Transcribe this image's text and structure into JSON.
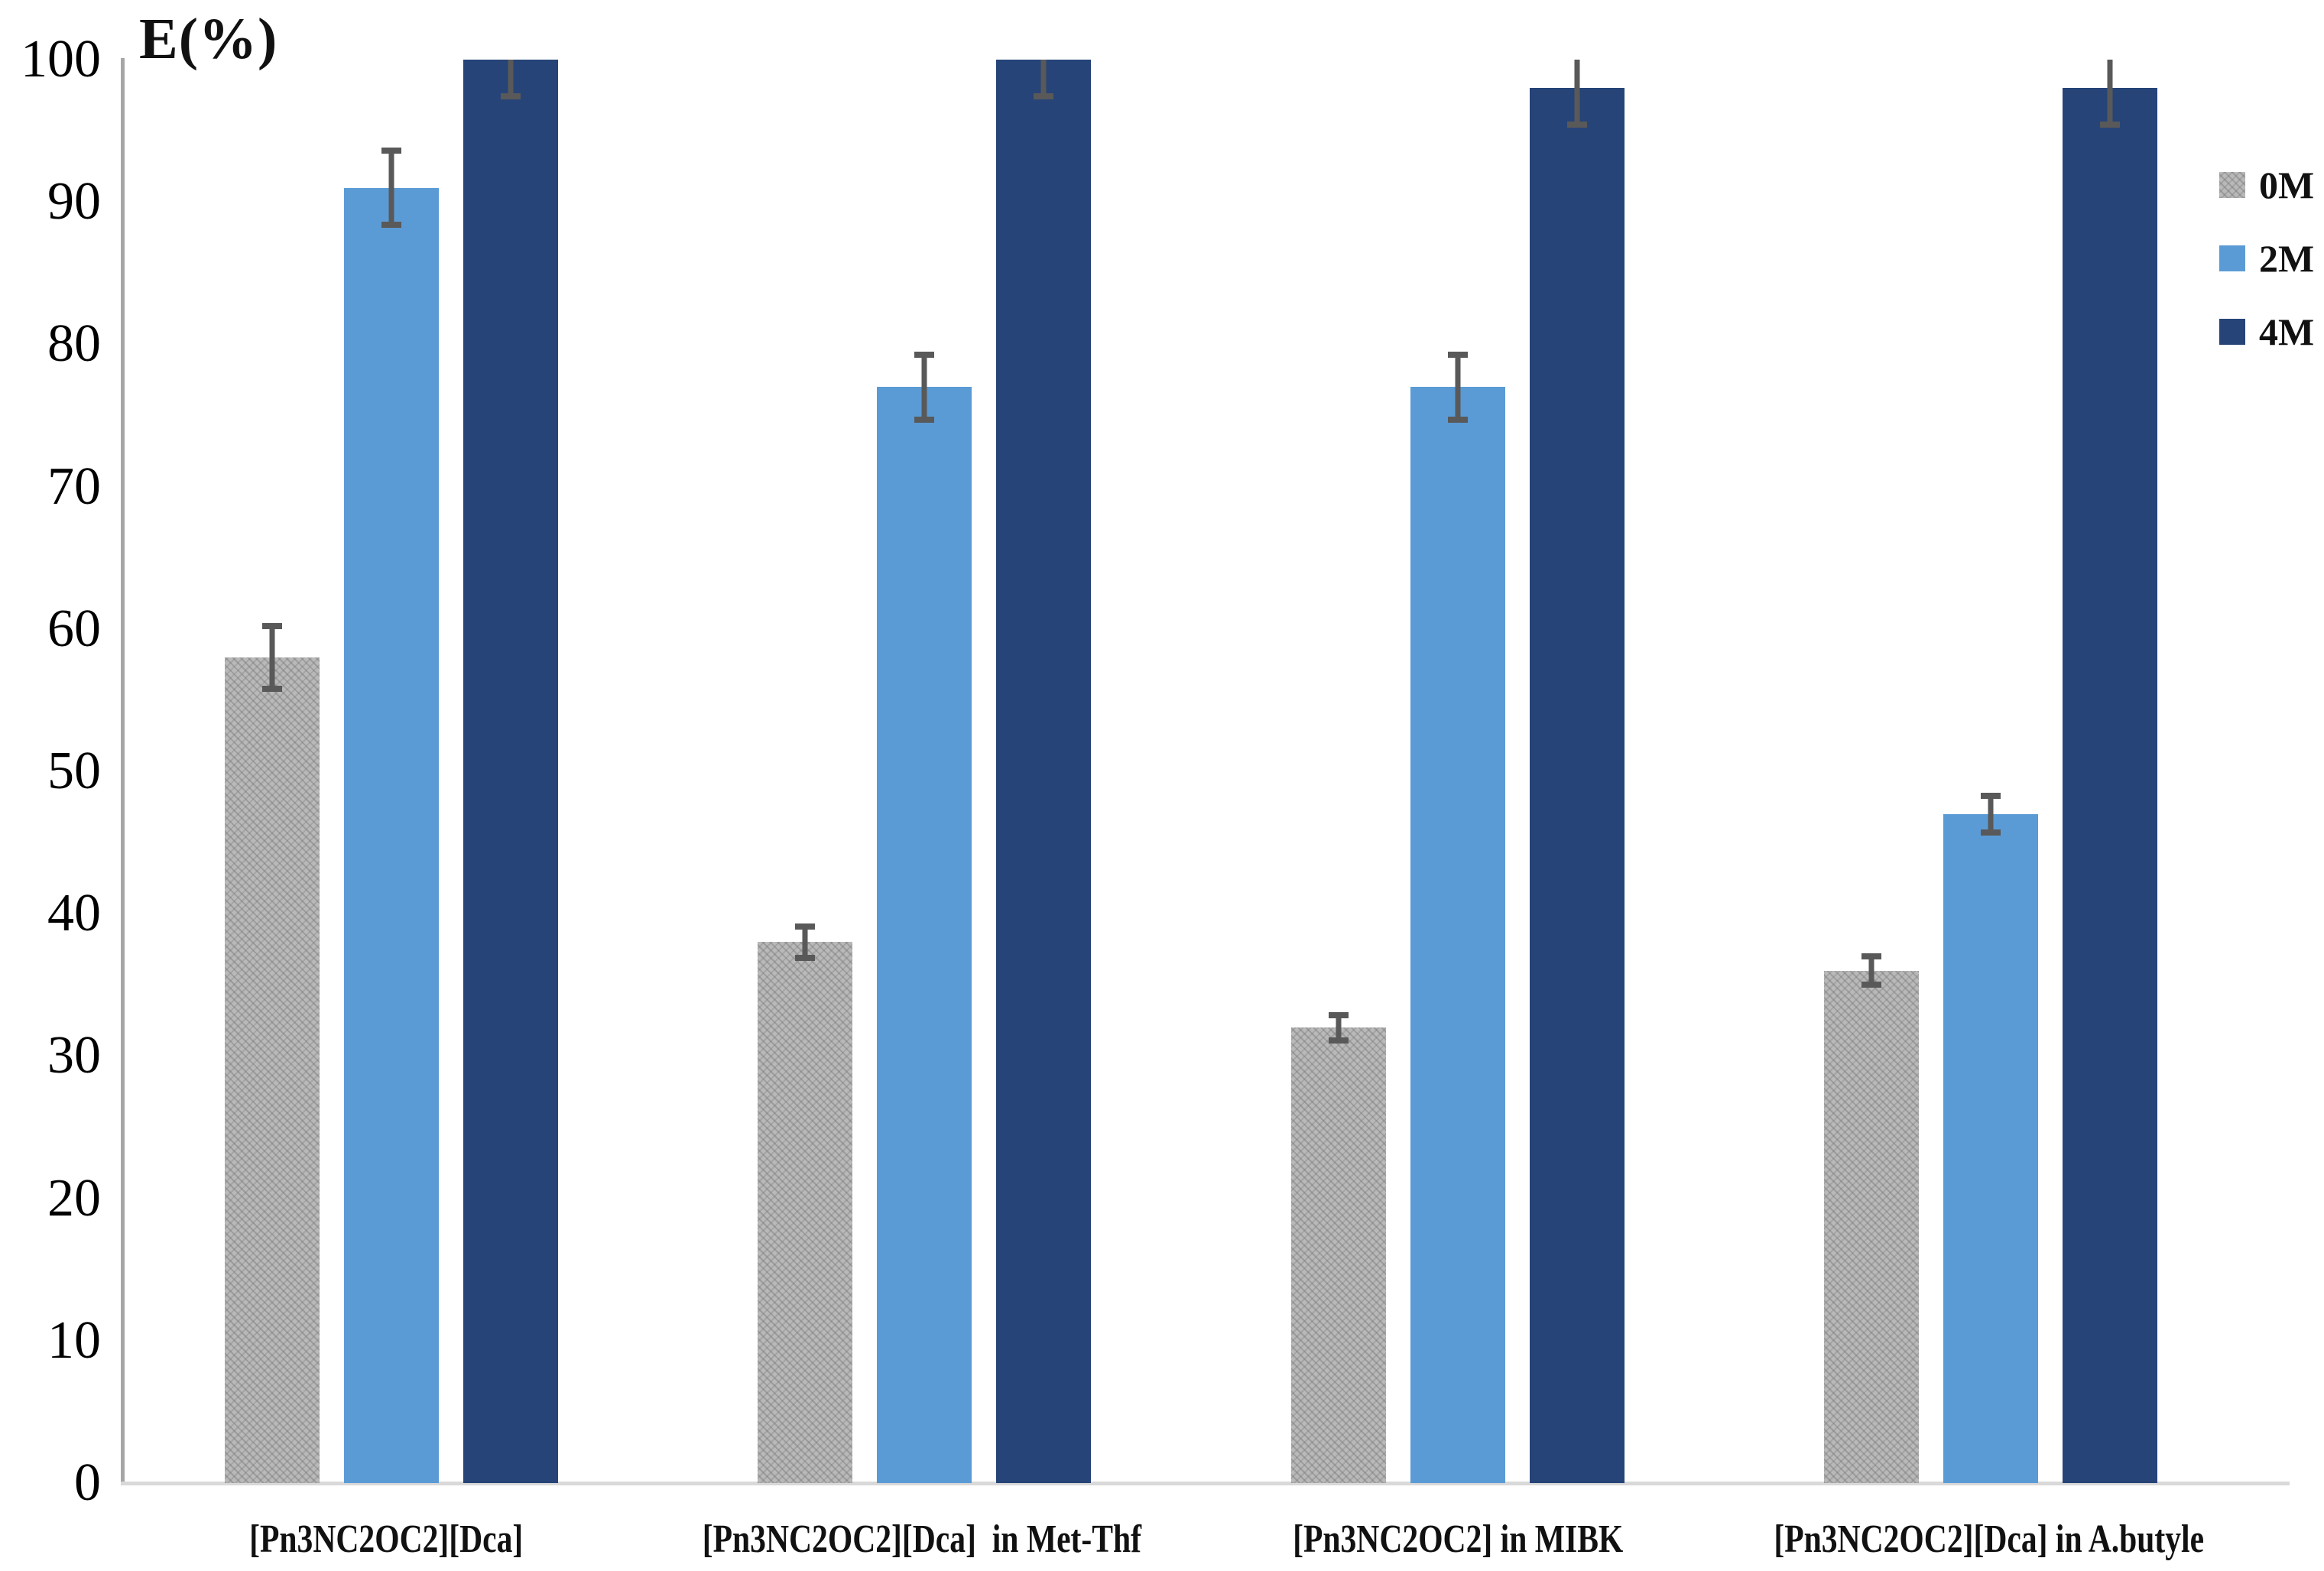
{
  "chart_data": {
    "type": "bar",
    "title": "",
    "ylabel": "E(%)",
    "xlabel": "",
    "ylim": [
      0,
      100
    ],
    "yticks": [
      0,
      10,
      20,
      30,
      40,
      50,
      60,
      70,
      80,
      90,
      100
    ],
    "grid": false,
    "legend_position": "right",
    "categories": [
      "[Pn3NC2OC2][Dca]",
      "[Pn3NC2OC2][Dca]  in Met-Thf",
      "[Pn3NC2OC2] in MIBK",
      "[Pn3NC2OC2][Dca] in A.butyle"
    ],
    "series": [
      {
        "name": "0M",
        "color": "#b9b9b9",
        "fill": "weave-pattern",
        "values": [
          58,
          38,
          32,
          36
        ],
        "errors": [
          2.4,
          1.3,
          1.1,
          1.2
        ]
      },
      {
        "name": "2M",
        "color": "#5b9bd5",
        "fill": "solid",
        "values": [
          91,
          77,
          77,
          47
        ],
        "errors": [
          2.8,
          2.5,
          2.5,
          1.5
        ]
      },
      {
        "name": "4M",
        "color": "#264478",
        "fill": "solid",
        "values": [
          100,
          100,
          98,
          98
        ],
        "errors": [
          2.8,
          2.8,
          2.8,
          2.8
        ]
      }
    ],
    "error_bar_color": "#595959",
    "axis_line_color": "#a6a6a6",
    "baseline_color": "#d9d9d9"
  }
}
